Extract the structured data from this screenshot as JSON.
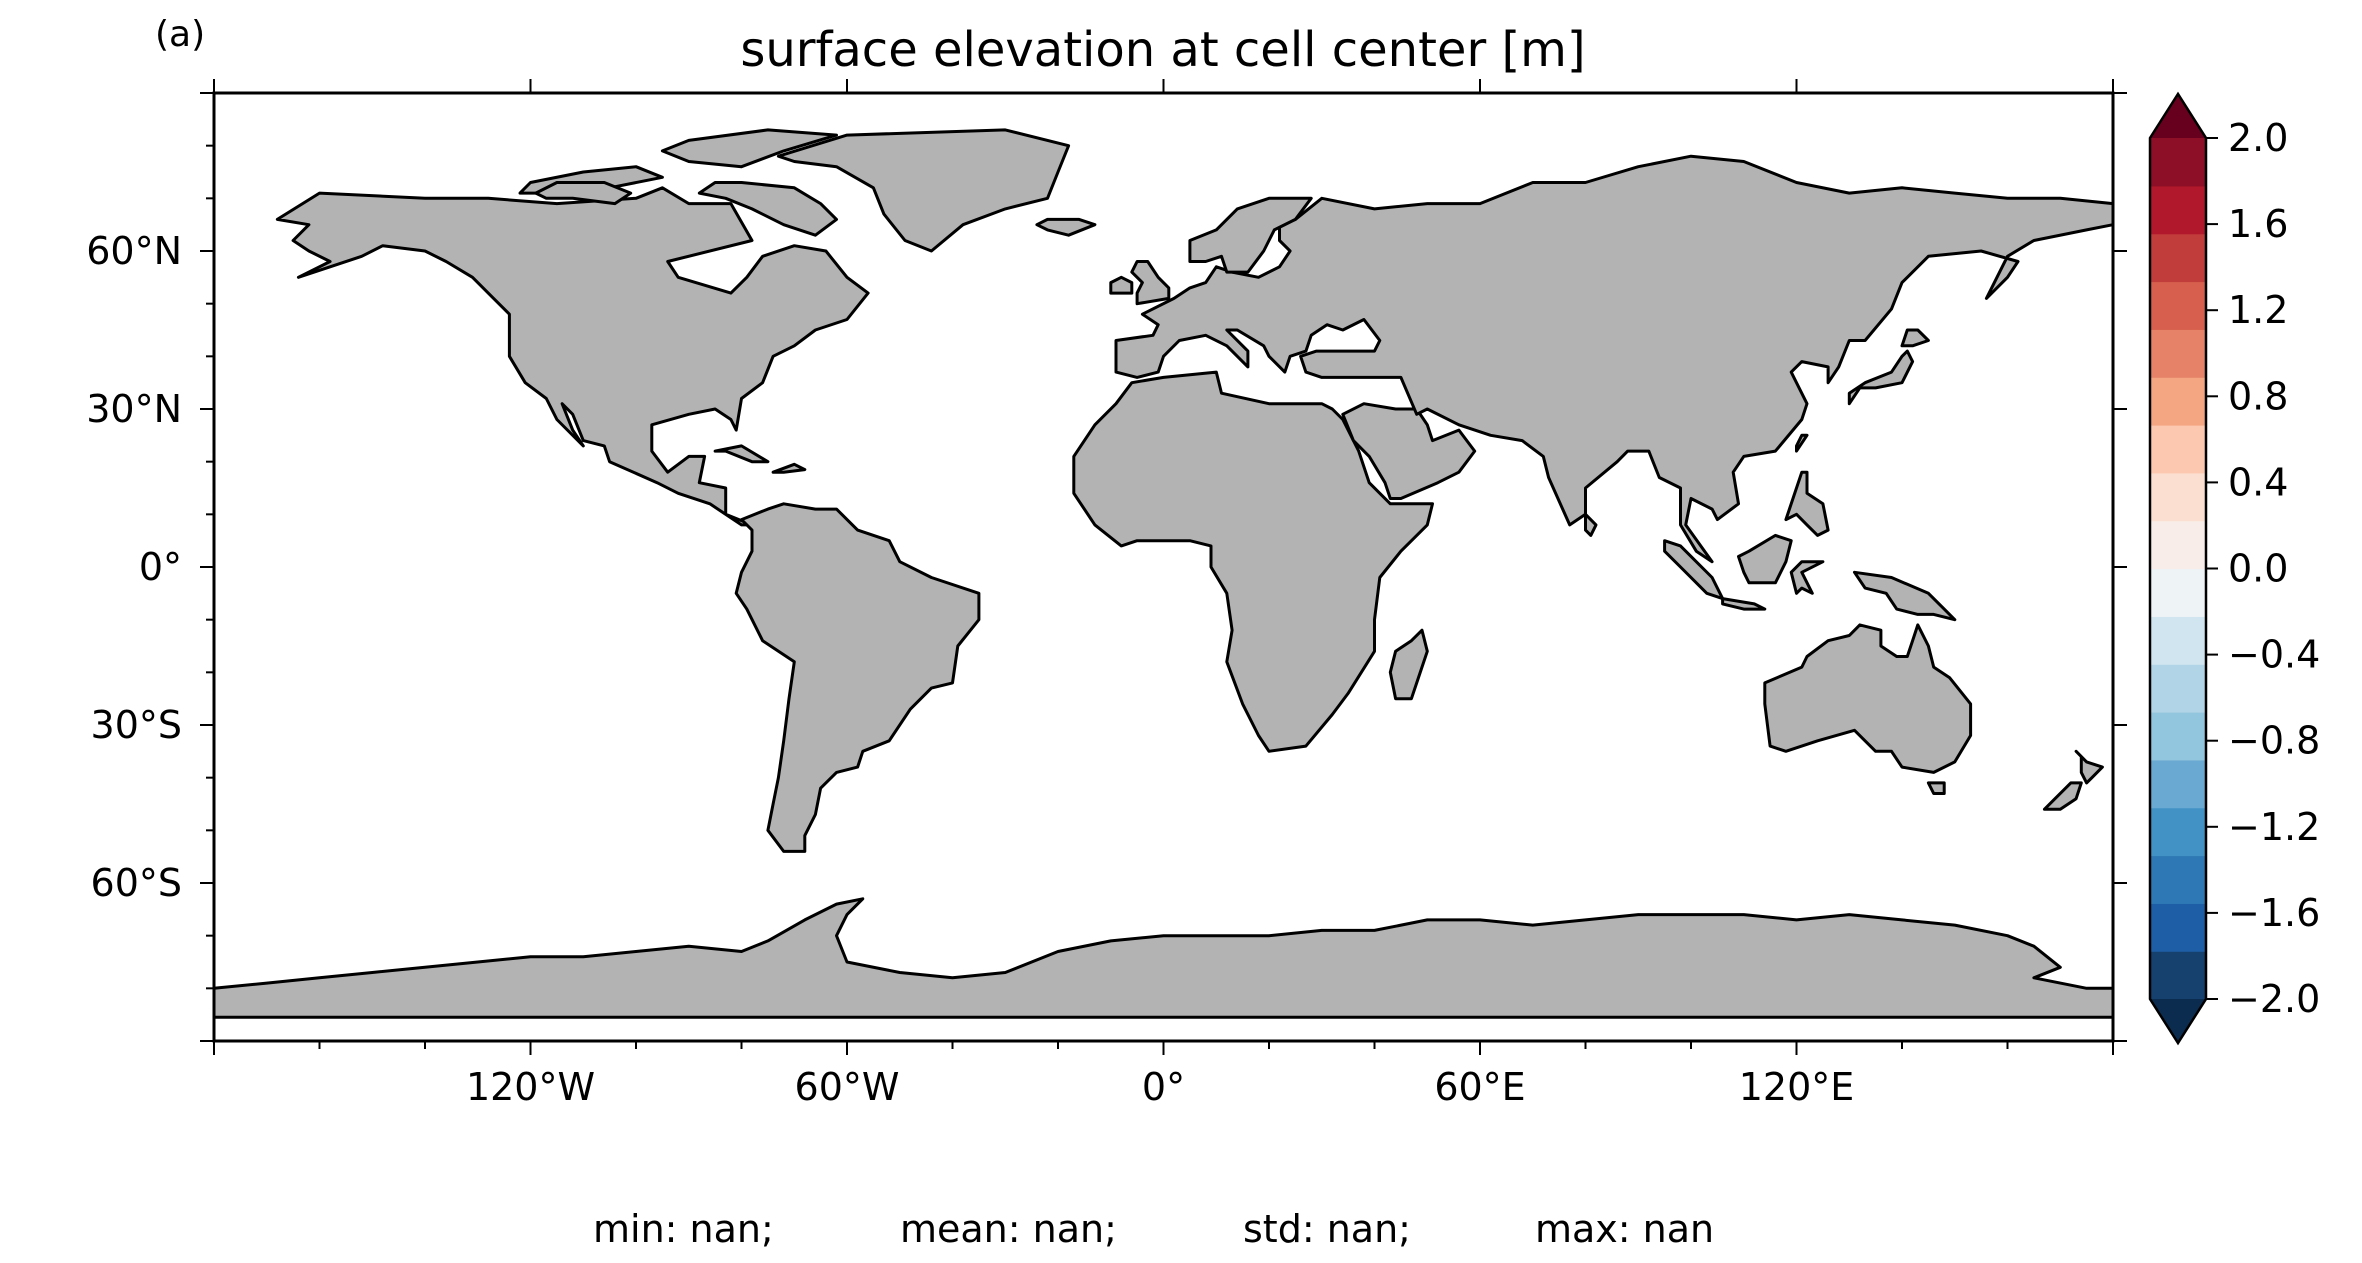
{
  "panel_label": "(a)",
  "title": "surface elevation at cell center [m]",
  "map": {
    "projection": "PlateCarree",
    "lon_range": [
      -180,
      180
    ],
    "lat_range": [
      -90,
      90
    ],
    "land_color": "#b3b3b3",
    "ocean_color": "#ffffff",
    "coast_color": "#000000",
    "lon_ticks": [
      {
        "value": -120,
        "label": "120°W"
      },
      {
        "value": -60,
        "label": "60°W"
      },
      {
        "value": 0,
        "label": "0°"
      },
      {
        "value": 60,
        "label": "60°E"
      },
      {
        "value": 120,
        "label": "120°E"
      }
    ],
    "lat_ticks": [
      {
        "value": 60,
        "label": "60°N"
      },
      {
        "value": 30,
        "label": "30°N"
      },
      {
        "value": 0,
        "label": "0°"
      },
      {
        "value": -30,
        "label": "30°S"
      },
      {
        "value": -60,
        "label": "60°S"
      }
    ]
  },
  "colorbar": {
    "min": -2.0,
    "max": 2.0,
    "extend": "both",
    "colors": [
      "#16416f",
      "#1e5ea6",
      "#2e79b5",
      "#4292c6",
      "#6aa9d1",
      "#92c5de",
      "#b2d4e7",
      "#d1e5f0",
      "#eef3f6",
      "#f8ede8",
      "#fbe0d2",
      "#fcc9b0",
      "#f4a582",
      "#e58267",
      "#d6604d",
      "#c13d3c",
      "#b2182b",
      "#8c0f27"
    ],
    "under_color": "#0b2c4f",
    "over_color": "#67001f",
    "ticks": [
      {
        "value": 2.0,
        "label": "2.0"
      },
      {
        "value": 1.6,
        "label": "1.6"
      },
      {
        "value": 1.2,
        "label": "1.2"
      },
      {
        "value": 0.8,
        "label": "0.8"
      },
      {
        "value": 0.4,
        "label": "0.4"
      },
      {
        "value": 0.0,
        "label": "0.0"
      },
      {
        "value": -0.4,
        "label": "−0.4"
      },
      {
        "value": -0.8,
        "label": "−0.8"
      },
      {
        "value": -1.2,
        "label": "−1.2"
      },
      {
        "value": -1.6,
        "label": "−1.6"
      },
      {
        "value": -2.0,
        "label": "−2.0"
      }
    ]
  },
  "stats": {
    "min": "min: nan;",
    "mean": "mean: nan;",
    "std": "std: nan;",
    "max": "max: nan"
  }
}
